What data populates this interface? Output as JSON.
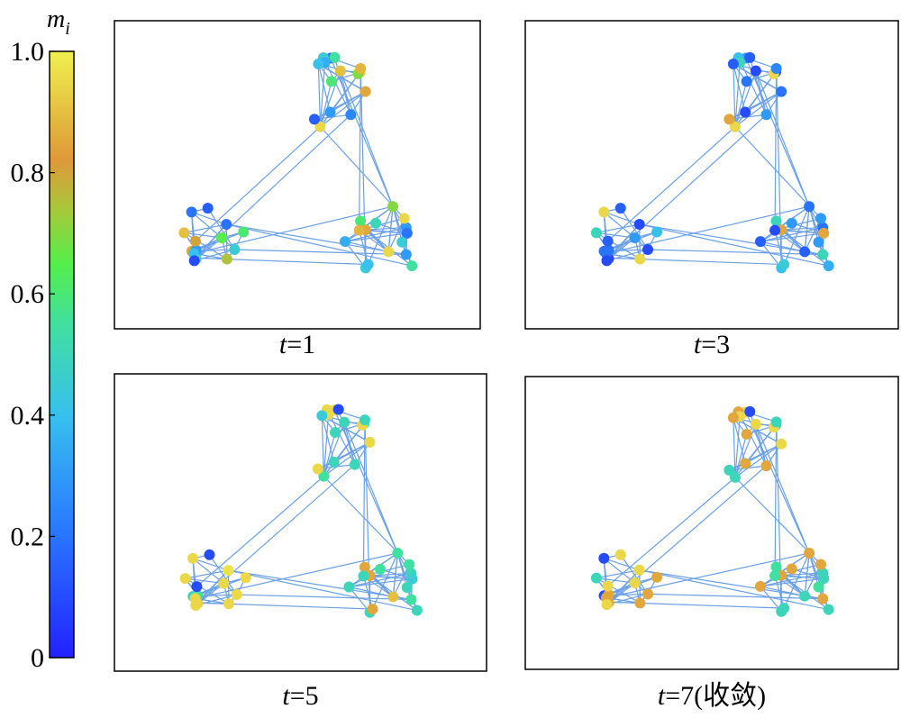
{
  "colorbar": {
    "symbol": "m",
    "subscript": "i",
    "lim": [
      0,
      1
    ],
    "ticks": [
      {
        "value": 0,
        "label": "0"
      },
      0.2,
      0.4,
      0.6,
      0.8,
      {
        "value": 1,
        "label": "1.0"
      }
    ]
  },
  "panels": [
    {
      "caption": "t=1",
      "values": [
        0.85,
        0.3,
        0.2,
        0.95,
        0.55,
        0.45,
        0.9,
        0.15,
        0.6,
        0.35,
        0.92,
        0.25,
        0.7,
        0.4,
        0.88,
        0.5,
        0.2,
        0.75,
        0.85,
        0.6,
        0.15,
        0.45,
        0.9,
        0.3,
        0.65,
        0.55,
        0.2,
        0.8,
        0.4,
        0.1,
        0.45,
        0.85,
        0.3,
        0.95,
        0.6,
        0.35,
        0.2,
        0.5,
        0.88,
        0.4,
        0.7,
        0.55,
        0.3,
        0.95,
        0.45
      ]
    },
    {
      "caption": "t=3",
      "values": [
        0.2,
        0.1,
        0.3,
        0.95,
        0.15,
        0.4,
        0.1,
        0.85,
        0.2,
        0.5,
        0.1,
        0.3,
        0.95,
        0.15,
        0.25,
        0.3,
        0.1,
        0.95,
        0.2,
        0.4,
        0.15,
        0.1,
        0.5,
        0.2,
        0.3,
        0.1,
        0.95,
        0.15,
        0.2,
        0.1,
        0.4,
        0.85,
        0.2,
        0.3,
        0.5,
        0.15,
        0.85,
        0.3,
        0.1,
        0.45,
        0.2,
        0.35,
        0.5,
        0.15,
        0.3
      ]
    },
    {
      "caption": "t=5",
      "values": [
        0.95,
        0.5,
        0.95,
        0.55,
        0.1,
        0.95,
        0.5,
        0.95,
        0.5,
        0.95,
        0.55,
        0.5,
        0.95,
        0.45,
        0.5,
        0.95,
        0.97,
        0.95,
        0.5,
        0.95,
        0.1,
        0.95,
        0.95,
        0.55,
        0.95,
        0.93,
        0.95,
        0.1,
        0.95,
        0.95,
        0.5,
        0.85,
        0.5,
        0.55,
        0.85,
        0.5,
        0.45,
        0.55,
        0.5,
        0.85,
        0.55,
        0.5,
        0.55,
        0.9,
        0.5
      ]
    },
    {
      "caption": "t=7(收敛)",
      "values": [
        0.95,
        0.85,
        0.95,
        0.5,
        0.1,
        0.85,
        0.95,
        0.5,
        0.85,
        0.95,
        0.5,
        0.85,
        0.95,
        0.85,
        0.5,
        0.85,
        0.95,
        0.85,
        0.1,
        0.85,
        0.95,
        0.85,
        0.5,
        0.85,
        0.95,
        0.85,
        0.1,
        0.95,
        0.85,
        0.95,
        0.5,
        0.85,
        0.5,
        0.85,
        0.55,
        0.85,
        0.5,
        0.85,
        0.55,
        0.5,
        0.85,
        0.5,
        0.85,
        0.5,
        0.55
      ]
    }
  ]
}
